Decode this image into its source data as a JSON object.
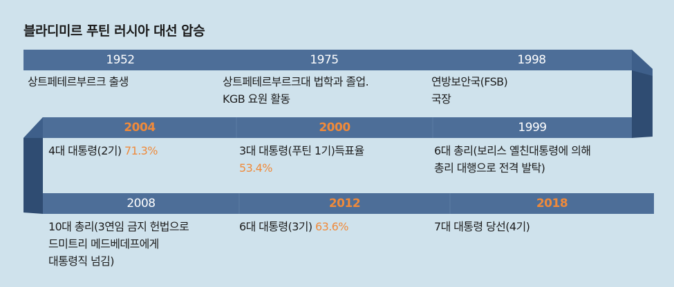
{
  "title": "블라디미르 푸틴 러시아 대선 압승",
  "rows": [
    {
      "events": [
        {
          "year": "1952",
          "year_color": "white",
          "lines": [
            {
              "text": "상트페테르부르크 출생"
            }
          ]
        },
        {
          "year": "1975",
          "year_color": "white",
          "lines": [
            {
              "text": "상트페테르부르크대 법학과 졸업."
            },
            {
              "text": "KGB 요원 활동"
            }
          ]
        },
        {
          "year": "1998",
          "year_color": "white",
          "lines": [
            {
              "text": "연방보안국(FSB)"
            },
            {
              "text": "국장"
            }
          ]
        }
      ]
    },
    {
      "events": [
        {
          "year": "2004",
          "year_color": "orange",
          "lines": [
            {
              "text": "4대 대통령(2기) ",
              "highlight": "71.3%"
            }
          ]
        },
        {
          "year": "2000",
          "year_color": "orange",
          "lines": [
            {
              "text": "3대 대통령(푸틴 1기)득표율"
            },
            {
              "text": "",
              "highlight": "53.4%"
            }
          ]
        },
        {
          "year": "1999",
          "year_color": "white",
          "lines": [
            {
              "text": "6대 총리(보리스 옐친대통령에 의해"
            },
            {
              "text": "총리 대행으로 전격 발탁)"
            }
          ]
        }
      ]
    },
    {
      "events": [
        {
          "year": "2008",
          "year_color": "white",
          "lines": [
            {
              "text": "10대 총리(3연임 금지 헌법으로"
            },
            {
              "text": "드미트리 메드베데프에게"
            },
            {
              "text": "대통령직 넘김)"
            }
          ]
        },
        {
          "year": "2012",
          "year_color": "orange",
          "lines": [
            {
              "text": "6대 대통령(3기) ",
              "highlight": "63.6%"
            }
          ]
        },
        {
          "year": "2018",
          "year_color": "orange",
          "lines": [
            {
              "text": "7대 대통령 당선(4기)"
            }
          ]
        }
      ]
    }
  ],
  "colors": {
    "background": "#cfe2ec",
    "band": "#4d6e98",
    "band_fold": "#2f4c72",
    "highlight": "#f08a3a"
  }
}
